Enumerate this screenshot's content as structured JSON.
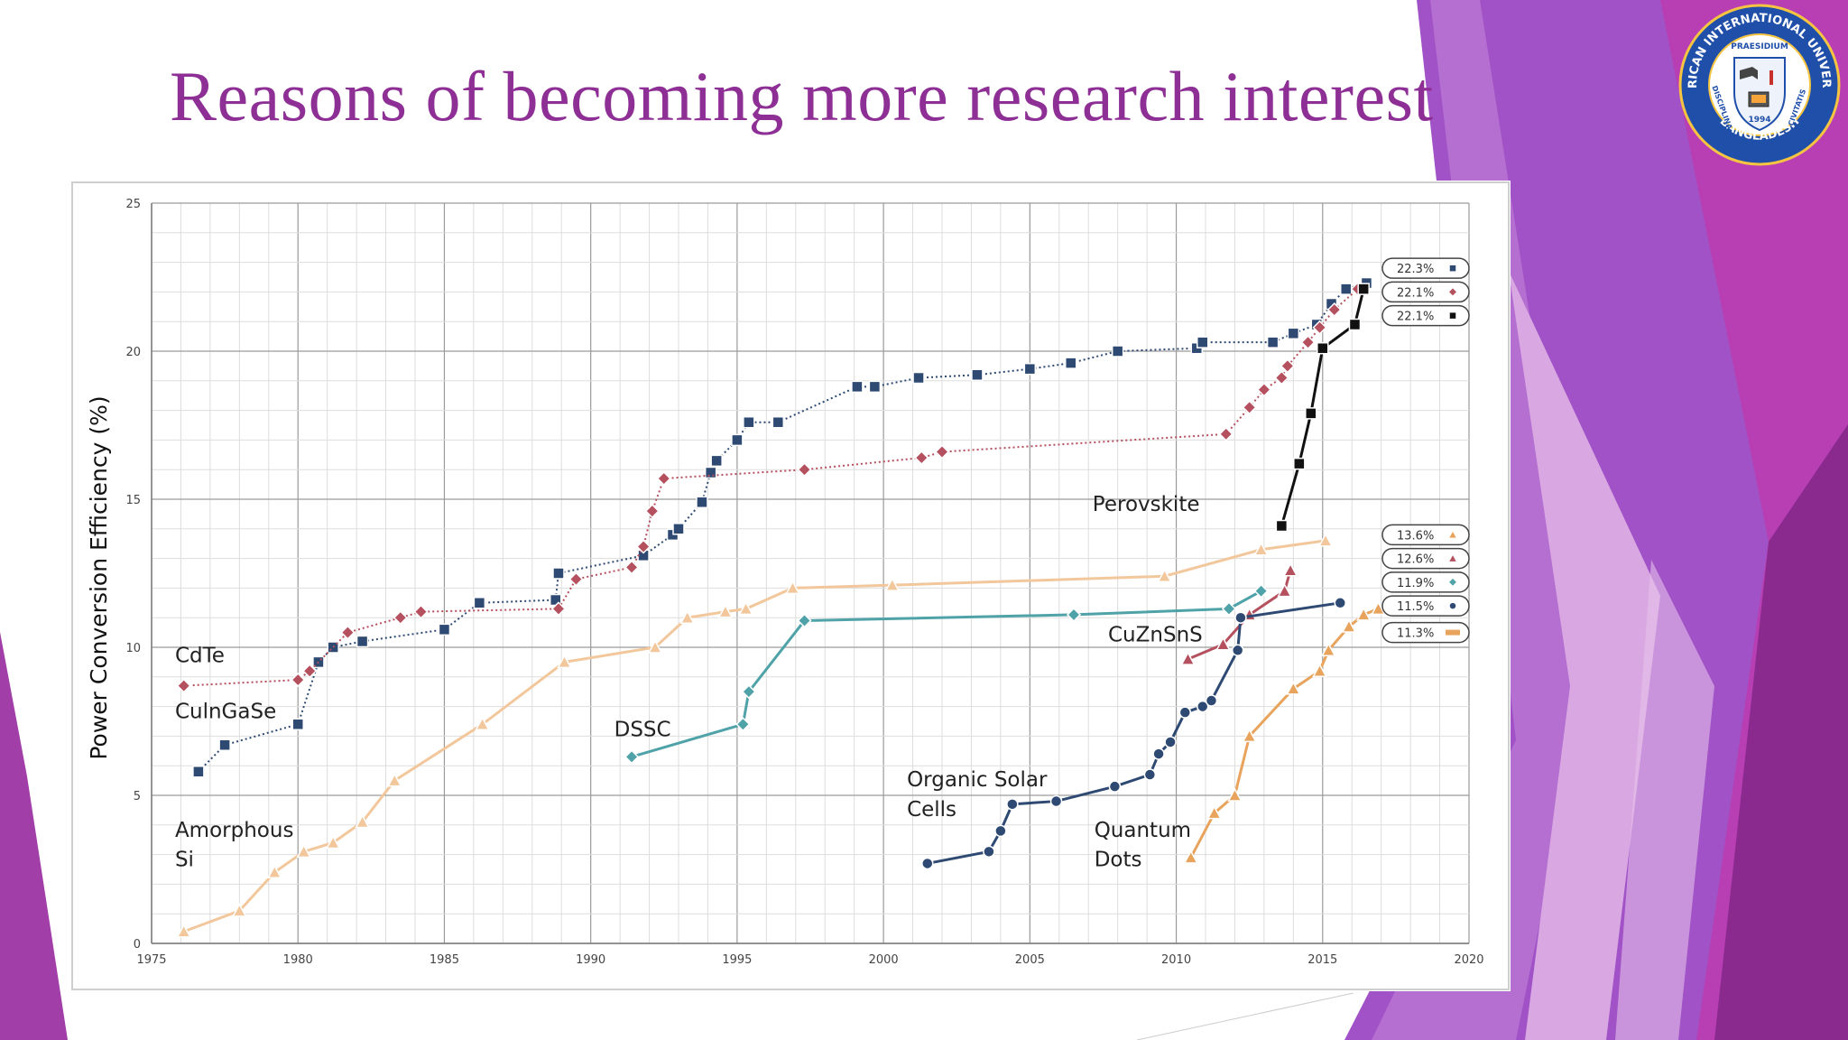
{
  "slide": {
    "title": "Reasons of becoming more research interest"
  },
  "logo": {
    "top_text": "AMERICAN INTERNATIONAL UNIVERSITY",
    "bottom_text": "BANGLADESH",
    "left_text": "DISCIPLINA",
    "right_text": "CIVITATIS",
    "motto": "PRAESIDIUM",
    "year": "1994",
    "ring_color": "#1f4fa8",
    "seal_text_color": "#ffffff"
  },
  "theme": {
    "title_color": "#8e2f95",
    "decor_colors": [
      "#9b4fc7",
      "#b05ac8",
      "#8e2f95",
      "#c98ad8",
      "#e0b8e6"
    ]
  },
  "chart_data": {
    "type": "line",
    "title": "",
    "xlabel": "",
    "ylabel": "Power Conversion Efficiency (%)",
    "xlim": [
      1975,
      2020
    ],
    "ylim": [
      0,
      25
    ],
    "x_ticks": [
      1975,
      1980,
      1985,
      1990,
      1995,
      2000,
      2005,
      2010,
      2015,
      2020
    ],
    "y_ticks": [
      0,
      5,
      10,
      15,
      20,
      25
    ],
    "grid": true,
    "series": [
      {
        "name": "CulnGaSe",
        "color": "#2e4a73",
        "marker": "square",
        "dotted": true,
        "points": [
          [
            1976.6,
            5.8
          ],
          [
            1977.5,
            6.7
          ],
          [
            1980,
            7.4
          ],
          [
            1980.7,
            9.5
          ],
          [
            1981.2,
            10
          ],
          [
            1982.2,
            10.2
          ],
          [
            1985,
            10.6
          ],
          [
            1986.2,
            11.5
          ],
          [
            1988.8,
            11.6
          ],
          [
            1988.9,
            12.5
          ],
          [
            1991.8,
            13.1
          ],
          [
            1992.8,
            13.8
          ],
          [
            1993,
            14
          ],
          [
            1993.8,
            14.9
          ],
          [
            1994.1,
            15.9
          ],
          [
            1994.3,
            16.3
          ],
          [
            1995,
            17
          ],
          [
            1995.4,
            17.6
          ],
          [
            1996.4,
            17.6
          ],
          [
            1999.1,
            18.8
          ],
          [
            1999.7,
            18.8
          ],
          [
            2001.2,
            19.1
          ],
          [
            2003.2,
            19.2
          ],
          [
            2005,
            19.4
          ],
          [
            2006.4,
            19.6
          ],
          [
            2008,
            20
          ],
          [
            2010.7,
            20.1
          ],
          [
            2010.9,
            20.3
          ],
          [
            2013.3,
            20.3
          ],
          [
            2014,
            20.6
          ],
          [
            2014.8,
            20.9
          ],
          [
            2015.3,
            21.6
          ],
          [
            2015.8,
            22.1
          ],
          [
            2016.5,
            22.3
          ]
        ]
      },
      {
        "name": "CdTe",
        "color": "#b5505f",
        "marker": "diamond",
        "dotted": true,
        "points": [
          [
            1976.1,
            8.7
          ],
          [
            1980,
            8.9
          ],
          [
            1980.4,
            9.2
          ],
          [
            1981.7,
            10.5
          ],
          [
            1983.5,
            11
          ],
          [
            1984.2,
            11.2
          ],
          [
            1988.9,
            11.3
          ],
          [
            1989.5,
            12.3
          ],
          [
            1991.4,
            12.7
          ],
          [
            1991.8,
            13.4
          ],
          [
            1992.1,
            14.6
          ],
          [
            1992.5,
            15.7
          ],
          [
            1997.3,
            16
          ],
          [
            2001.3,
            16.4
          ],
          [
            2002,
            16.6
          ],
          [
            2011.7,
            17.2
          ],
          [
            2012.5,
            18.1
          ],
          [
            2013,
            18.7
          ],
          [
            2013.6,
            19.1
          ],
          [
            2013.8,
            19.5
          ],
          [
            2014.5,
            20.3
          ],
          [
            2014.9,
            20.8
          ],
          [
            2015.4,
            21.4
          ],
          [
            2016.2,
            22.1
          ]
        ]
      },
      {
        "name": "Perovskite",
        "color": "#111111",
        "marker": "square",
        "dotted": false,
        "points": [
          [
            2013.6,
            14.1
          ],
          [
            2014.2,
            16.2
          ],
          [
            2014.6,
            17.9
          ],
          [
            2015,
            20.1
          ],
          [
            2016.1,
            20.9
          ],
          [
            2016.4,
            22.1
          ]
        ]
      },
      {
        "name": "Amorphous Si",
        "color": "#f2c79c",
        "marker": "triangle",
        "dotted": false,
        "points": [
          [
            1976.1,
            0.4
          ],
          [
            1978,
            1.1
          ],
          [
            1979.2,
            2.4
          ],
          [
            1980.2,
            3.1
          ],
          [
            1981.2,
            3.4
          ],
          [
            1982.2,
            4.1
          ],
          [
            1983.3,
            5.5
          ],
          [
            1986.3,
            7.4
          ],
          [
            1989.1,
            9.5
          ],
          [
            1992.2,
            10
          ],
          [
            1993.3,
            11
          ],
          [
            1994.6,
            11.2
          ],
          [
            1995.3,
            11.3
          ],
          [
            1996.9,
            12
          ],
          [
            2000.3,
            12.1
          ],
          [
            2009.6,
            12.4
          ],
          [
            2012.9,
            13.3
          ],
          [
            2015.1,
            13.6
          ]
        ]
      },
      {
        "name": "CuZnSnS",
        "color": "#b5505f",
        "marker": "triangle",
        "dotted": false,
        "points": [
          [
            2010.4,
            9.6
          ],
          [
            2011.6,
            10.1
          ],
          [
            2012.5,
            11.1
          ],
          [
            2013.7,
            11.9
          ],
          [
            2013.9,
            12.6
          ]
        ]
      },
      {
        "name": "DSSC",
        "color": "#4fa3a8",
        "marker": "diamond",
        "dotted": false,
        "points": [
          [
            1991.4,
            6.3
          ],
          [
            1995.2,
            7.4
          ],
          [
            1995.4,
            8.5
          ],
          [
            1997.3,
            10.9
          ],
          [
            2006.5,
            11.1
          ],
          [
            2011.8,
            11.3
          ],
          [
            2012.9,
            11.9
          ]
        ]
      },
      {
        "name": "Organic Solar Cells",
        "color": "#2e4a73",
        "marker": "circle",
        "dotted": false,
        "points": [
          [
            2001.5,
            2.7
          ],
          [
            2003.6,
            3.1
          ],
          [
            2004,
            3.8
          ],
          [
            2004.4,
            4.7
          ],
          [
            2005.9,
            4.8
          ],
          [
            2007.9,
            5.3
          ],
          [
            2009.1,
            5.7
          ],
          [
            2009.4,
            6.4
          ],
          [
            2009.8,
            6.8
          ],
          [
            2010.3,
            7.8
          ],
          [
            2010.9,
            8
          ],
          [
            2011.2,
            8.2
          ],
          [
            2012.1,
            9.9
          ],
          [
            2012.2,
            11
          ],
          [
            2015.6,
            11.5
          ]
        ]
      },
      {
        "name": "Quantum Dots",
        "color": "#e8a35c",
        "marker": "triangle",
        "dotted": false,
        "points": [
          [
            2010.5,
            2.9
          ],
          [
            2011.3,
            4.4
          ],
          [
            2012,
            5
          ],
          [
            2012.5,
            7
          ],
          [
            2014,
            8.6
          ],
          [
            2014.9,
            9.2
          ],
          [
            2015.2,
            9.9
          ],
          [
            2015.9,
            10.7
          ],
          [
            2016.4,
            11.1
          ],
          [
            2016.9,
            11.3
          ]
        ]
      }
    ],
    "series_labels": [
      {
        "text": "CdTe",
        "x": 1975.8,
        "y": 9.5,
        "anchor": "start"
      },
      {
        "text": "CulnGaSe",
        "x": 1975.8,
        "y": 7.6,
        "anchor": "start"
      },
      {
        "text": "Amorphous",
        "x": 1975.8,
        "y": 3.6,
        "anchor": "start"
      },
      {
        "text": "Si",
        "x": 1975.8,
        "y": 2.6,
        "anchor": "start"
      },
      {
        "text": "DSSC",
        "x": 1990.8,
        "y": 7.0,
        "anchor": "start"
      },
      {
        "text": "Organic Solar",
        "x": 2000.8,
        "y": 5.3,
        "anchor": "start"
      },
      {
        "text": "Cells",
        "x": 2000.8,
        "y": 4.3,
        "anchor": "start"
      },
      {
        "text": "Quantum",
        "x": 2007.2,
        "y": 3.6,
        "anchor": "start"
      },
      {
        "text": "Dots",
        "x": 2007.2,
        "y": 2.6,
        "anchor": "start"
      },
      {
        "text": "Perovskite",
        "x": 2010.8,
        "y": 14.6,
        "anchor": "end"
      },
      {
        "text": "CuZnSnS",
        "x": 2010.9,
        "y": 10.2,
        "anchor": "end"
      }
    ],
    "record_legend": [
      {
        "text": "22.3%",
        "y": 22.8,
        "color": "#2e4a73",
        "marker": "square"
      },
      {
        "text": "22.1%",
        "y": 22.0,
        "color": "#b5505f",
        "marker": "diamond"
      },
      {
        "text": "22.1%",
        "y": 21.2,
        "color": "#111111",
        "marker": "square"
      },
      {
        "text": "13.6%",
        "y": 13.8,
        "color": "#e8a35c",
        "marker": "triangle"
      },
      {
        "text": "12.6%",
        "y": 13.0,
        "color": "#b5505f",
        "marker": "triangle"
      },
      {
        "text": "11.9%",
        "y": 12.2,
        "color": "#4fa3a8",
        "marker": "diamond"
      },
      {
        "text": "11.5%",
        "y": 11.4,
        "color": "#2e4a73",
        "marker": "circle"
      },
      {
        "text": "11.3%",
        "y": 10.5,
        "color": "#e8a35c",
        "marker": "line"
      }
    ]
  }
}
